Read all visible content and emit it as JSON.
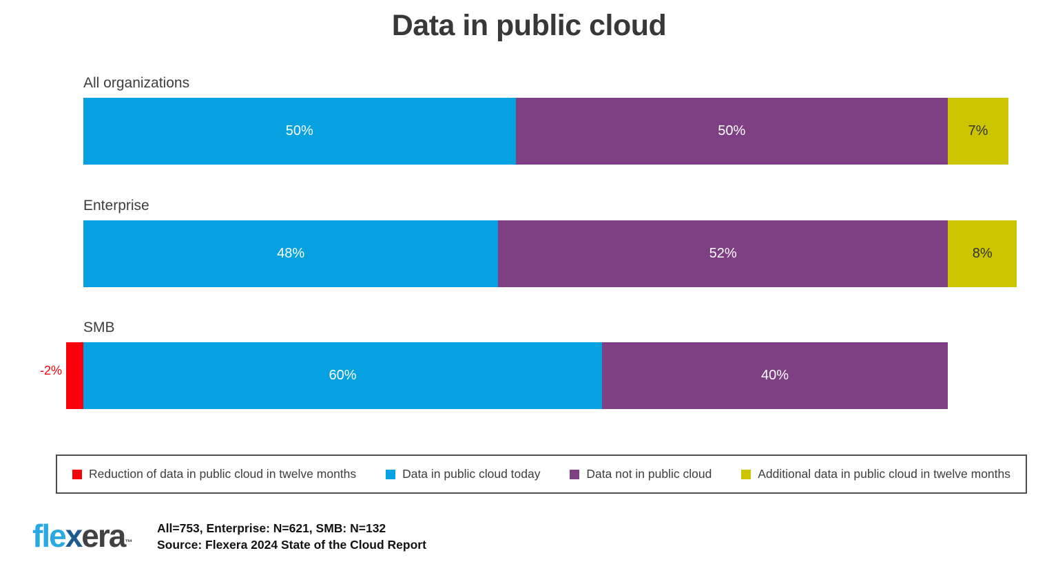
{
  "title": "Data in public cloud",
  "series_colors": {
    "reduction": "#fa000a",
    "today": "#05a1e0",
    "not_in_cloud": "#7e4082",
    "additional": "#cdc400"
  },
  "chart_data": {
    "type": "bar",
    "orientation": "horizontal",
    "stacked": true,
    "title": "Data in public cloud",
    "categories": [
      "All organizations",
      "Enterprise",
      "SMB"
    ],
    "series": [
      {
        "name": "Reduction of data in public cloud in twelve months",
        "color": "#fa000a",
        "values": [
          0,
          0,
          -2
        ]
      },
      {
        "name": "Data in public cloud today",
        "color": "#05a1e0",
        "values": [
          50,
          48,
          60
        ]
      },
      {
        "name": "Data not in public cloud",
        "color": "#7e4082",
        "values": [
          50,
          52,
          40
        ]
      },
      {
        "name": "Additional data in public cloud in twelve months",
        "color": "#cdc400",
        "values": [
          7,
          8,
          0
        ]
      }
    ],
    "value_suffix": "%",
    "legend_position": "bottom",
    "notes": "Today + not-in-cloud segments span 0-100%; reduction segment is drawn left of the 0 baseline; additional segment extends past 100%"
  },
  "bars": [
    {
      "label": "All organizations",
      "segments": [
        {
          "key": "today",
          "pct": 50,
          "text": "50%",
          "dark_text": false
        },
        {
          "key": "not_in_cloud",
          "pct": 50,
          "text": "50%",
          "dark_text": false
        },
        {
          "key": "additional",
          "pct": 7,
          "text": "7%",
          "dark_text": true
        }
      ]
    },
    {
      "label": "Enterprise",
      "segments": [
        {
          "key": "today",
          "pct": 48,
          "text": "48%",
          "dark_text": false
        },
        {
          "key": "not_in_cloud",
          "pct": 52,
          "text": "52%",
          "dark_text": false
        },
        {
          "key": "additional",
          "pct": 8,
          "text": "8%",
          "dark_text": true
        }
      ]
    },
    {
      "label": "SMB",
      "outside_label": "-2%",
      "segments": [
        {
          "key": "reduction",
          "pct": 2,
          "text": "",
          "dark_text": false
        },
        {
          "key": "today",
          "pct": 60,
          "text": "60%",
          "dark_text": false
        },
        {
          "key": "not_in_cloud",
          "pct": 40,
          "text": "40%",
          "dark_text": false
        }
      ]
    }
  ],
  "legend": {
    "items": [
      {
        "key": "reduction",
        "label": "Reduction of data in public cloud in twelve months"
      },
      {
        "key": "today",
        "label": "Data in public cloud today"
      },
      {
        "key": "not_in_cloud",
        "label": "Data not in public cloud"
      },
      {
        "key": "additional",
        "label": "Additional data in public cloud in twelve months"
      }
    ]
  },
  "footer": {
    "logo_parts": {
      "blue": "fle",
      "x": "x",
      "dark": "era"
    },
    "logo_tm": "™",
    "sample_line": "All=753, Enterprise: N=621, SMB: N=132",
    "source_line": "Source: Flexera 2024 State of the Cloud Report"
  }
}
